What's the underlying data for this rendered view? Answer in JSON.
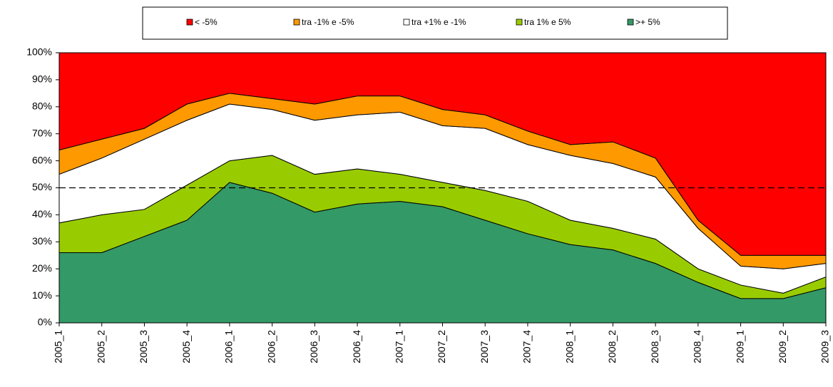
{
  "chart_data": {
    "type": "stacked_area",
    "categories": [
      "2005_1",
      "2005_2",
      "2005_3",
      "2005_4",
      "2006_1",
      "2006_2",
      "2006_3",
      "2006_4",
      "2007_1",
      "2007_2",
      "2007_3",
      "2007_4",
      "2008_1",
      "2008_2",
      "2008_3",
      "2008_4",
      "2009_1",
      "2009_2",
      "2009_3"
    ],
    "series": [
      {
        "name": "< -5%",
        "color": "#ff0000",
        "values": [
          36,
          32,
          28,
          19,
          15,
          17,
          19,
          16,
          16,
          21,
          23,
          29,
          34,
          33,
          39,
          62,
          75,
          75,
          75
        ]
      },
      {
        "name": "tra -1% e -5%",
        "color": "#ff9900",
        "values": [
          9,
          7,
          4,
          6,
          4,
          4,
          6,
          7,
          6,
          6,
          5,
          5,
          4,
          8,
          7,
          3,
          4,
          5,
          3
        ]
      },
      {
        "name": "tra +1% e -1%",
        "color": "#ffffff",
        "values": [
          18,
          21,
          26,
          24,
          21,
          17,
          20,
          20,
          23,
          21,
          23,
          21,
          24,
          24,
          23,
          15,
          7,
          9,
          5
        ]
      },
      {
        "name": "tra 1% e 5%",
        "color": "#99cc00",
        "values": [
          11,
          14,
          10,
          13,
          8,
          14,
          14,
          13,
          10,
          9,
          11,
          12,
          9,
          8,
          9,
          5,
          5,
          2,
          4
        ]
      },
      {
        "name": ">+ 5%",
        "color": "#339966",
        "values": [
          26,
          26,
          32,
          38,
          52,
          48,
          41,
          44,
          45,
          43,
          38,
          33,
          29,
          27,
          22,
          15,
          9,
          9,
          13
        ]
      }
    ],
    "ylim": [
      0,
      100
    ],
    "yticks": [
      {
        "value": 0,
        "label": "0%"
      },
      {
        "value": 10,
        "label": "10%"
      },
      {
        "value": 20,
        "label": "20%"
      },
      {
        "value": 30,
        "label": "30%"
      },
      {
        "value": 40,
        "label": "40%"
      },
      {
        "value": 50,
        "label": "50%"
      },
      {
        "value": 60,
        "label": "60%"
      },
      {
        "value": 70,
        "label": "70%"
      },
      {
        "value": 80,
        "label": "80%"
      },
      {
        "value": 90,
        "label": "90%"
      },
      {
        "value": 100,
        "label": "100%"
      }
    ],
    "reference_line": 50,
    "legend": "top"
  }
}
